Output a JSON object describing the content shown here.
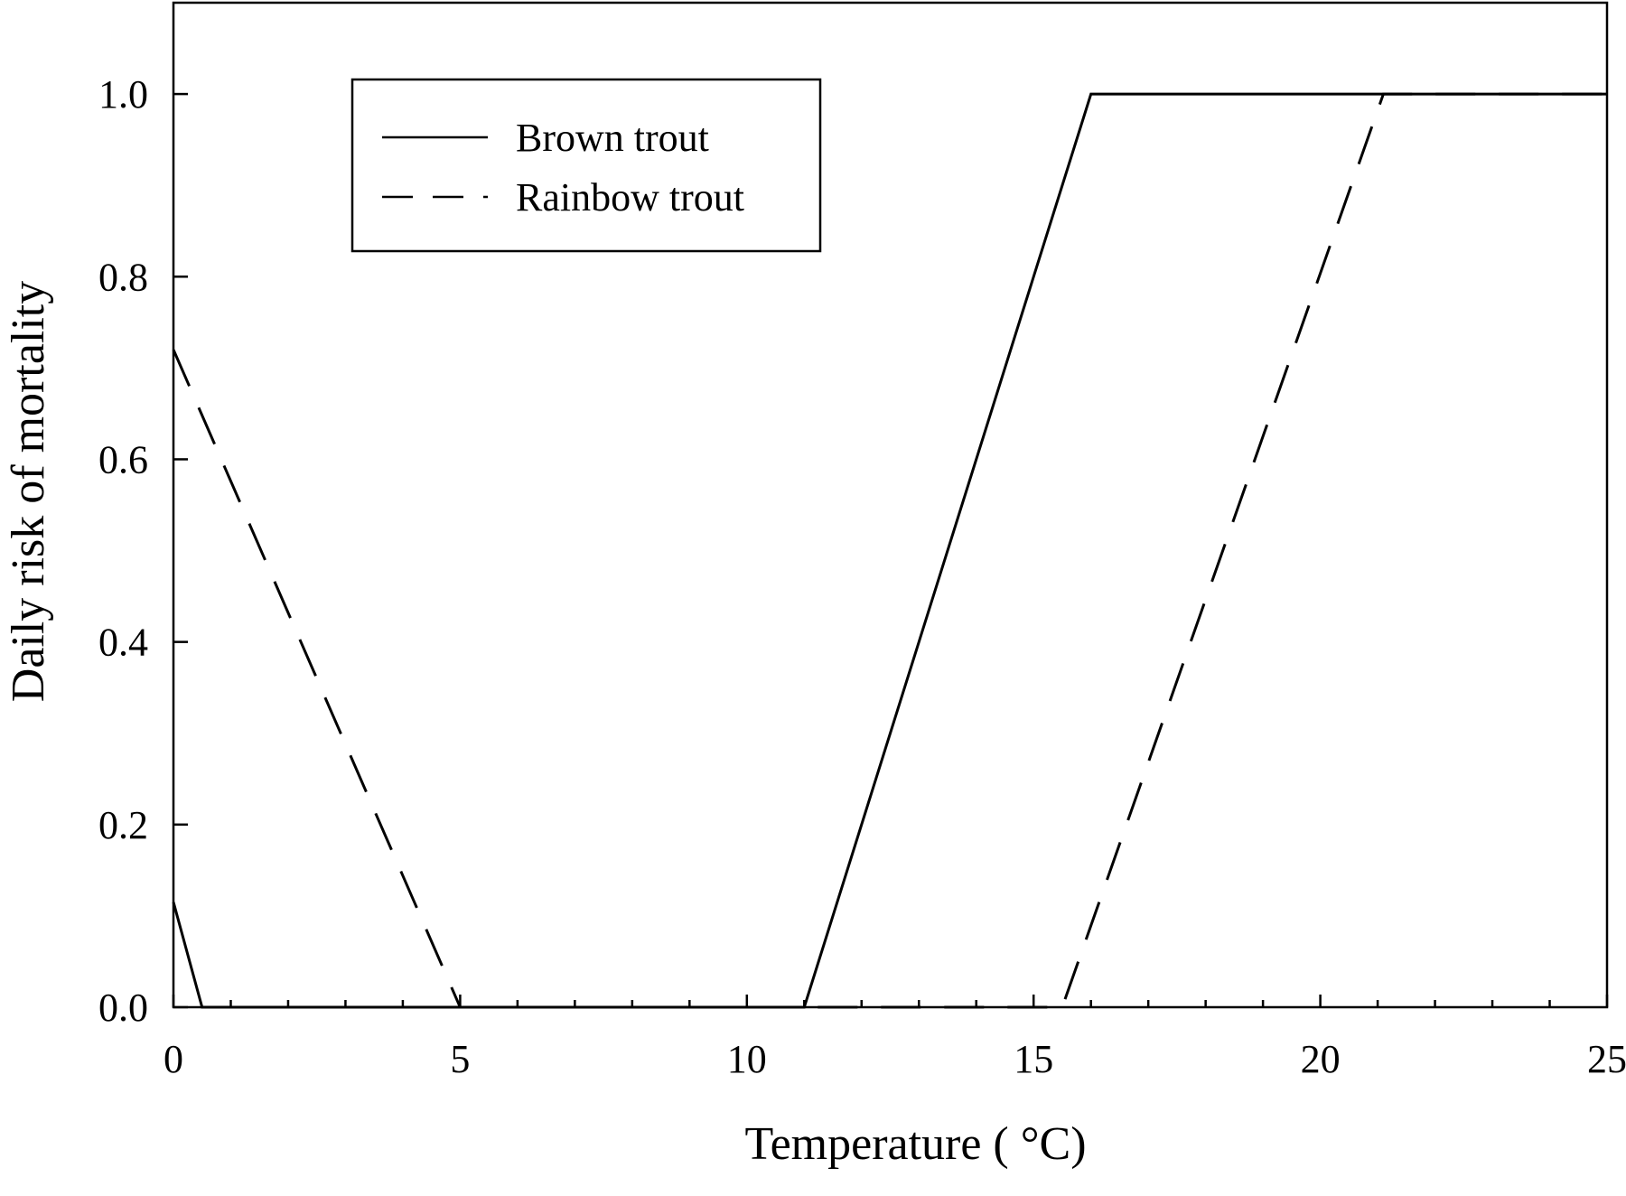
{
  "chart_data": {
    "type": "line",
    "title": "",
    "xlabel": "Temperature ( °C)",
    "ylabel": "Daily risk of mortality",
    "xlim": [
      0,
      25
    ],
    "ylim": [
      0,
      1.1
    ],
    "x_ticks": [
      0,
      5,
      10,
      15,
      20,
      25
    ],
    "x_tick_labels": [
      "0",
      "5",
      "10",
      "15",
      "20",
      "25"
    ],
    "x_minor_step": 1,
    "y_ticks": [
      0.0,
      0.2,
      0.4,
      0.6,
      0.8,
      1.0
    ],
    "y_tick_labels": [
      "0.0",
      "0.2",
      "0.4",
      "0.6",
      "0.8",
      "1.0"
    ],
    "grid": false,
    "legend_position": "top-left",
    "series": [
      {
        "name": "Brown trout",
        "style": "solid",
        "color": "#000000",
        "x": [
          0,
          0.5,
          11.0,
          16.0,
          25.0
        ],
        "y": [
          0.115,
          0.0,
          0.0,
          1.0,
          1.0
        ]
      },
      {
        "name": "Rainbow trout",
        "style": "dashed",
        "color": "#000000",
        "x": [
          0,
          5.0,
          15.5,
          21.1,
          25.0
        ],
        "y": [
          0.72,
          0.0,
          0.0,
          1.0,
          1.0
        ]
      }
    ]
  }
}
